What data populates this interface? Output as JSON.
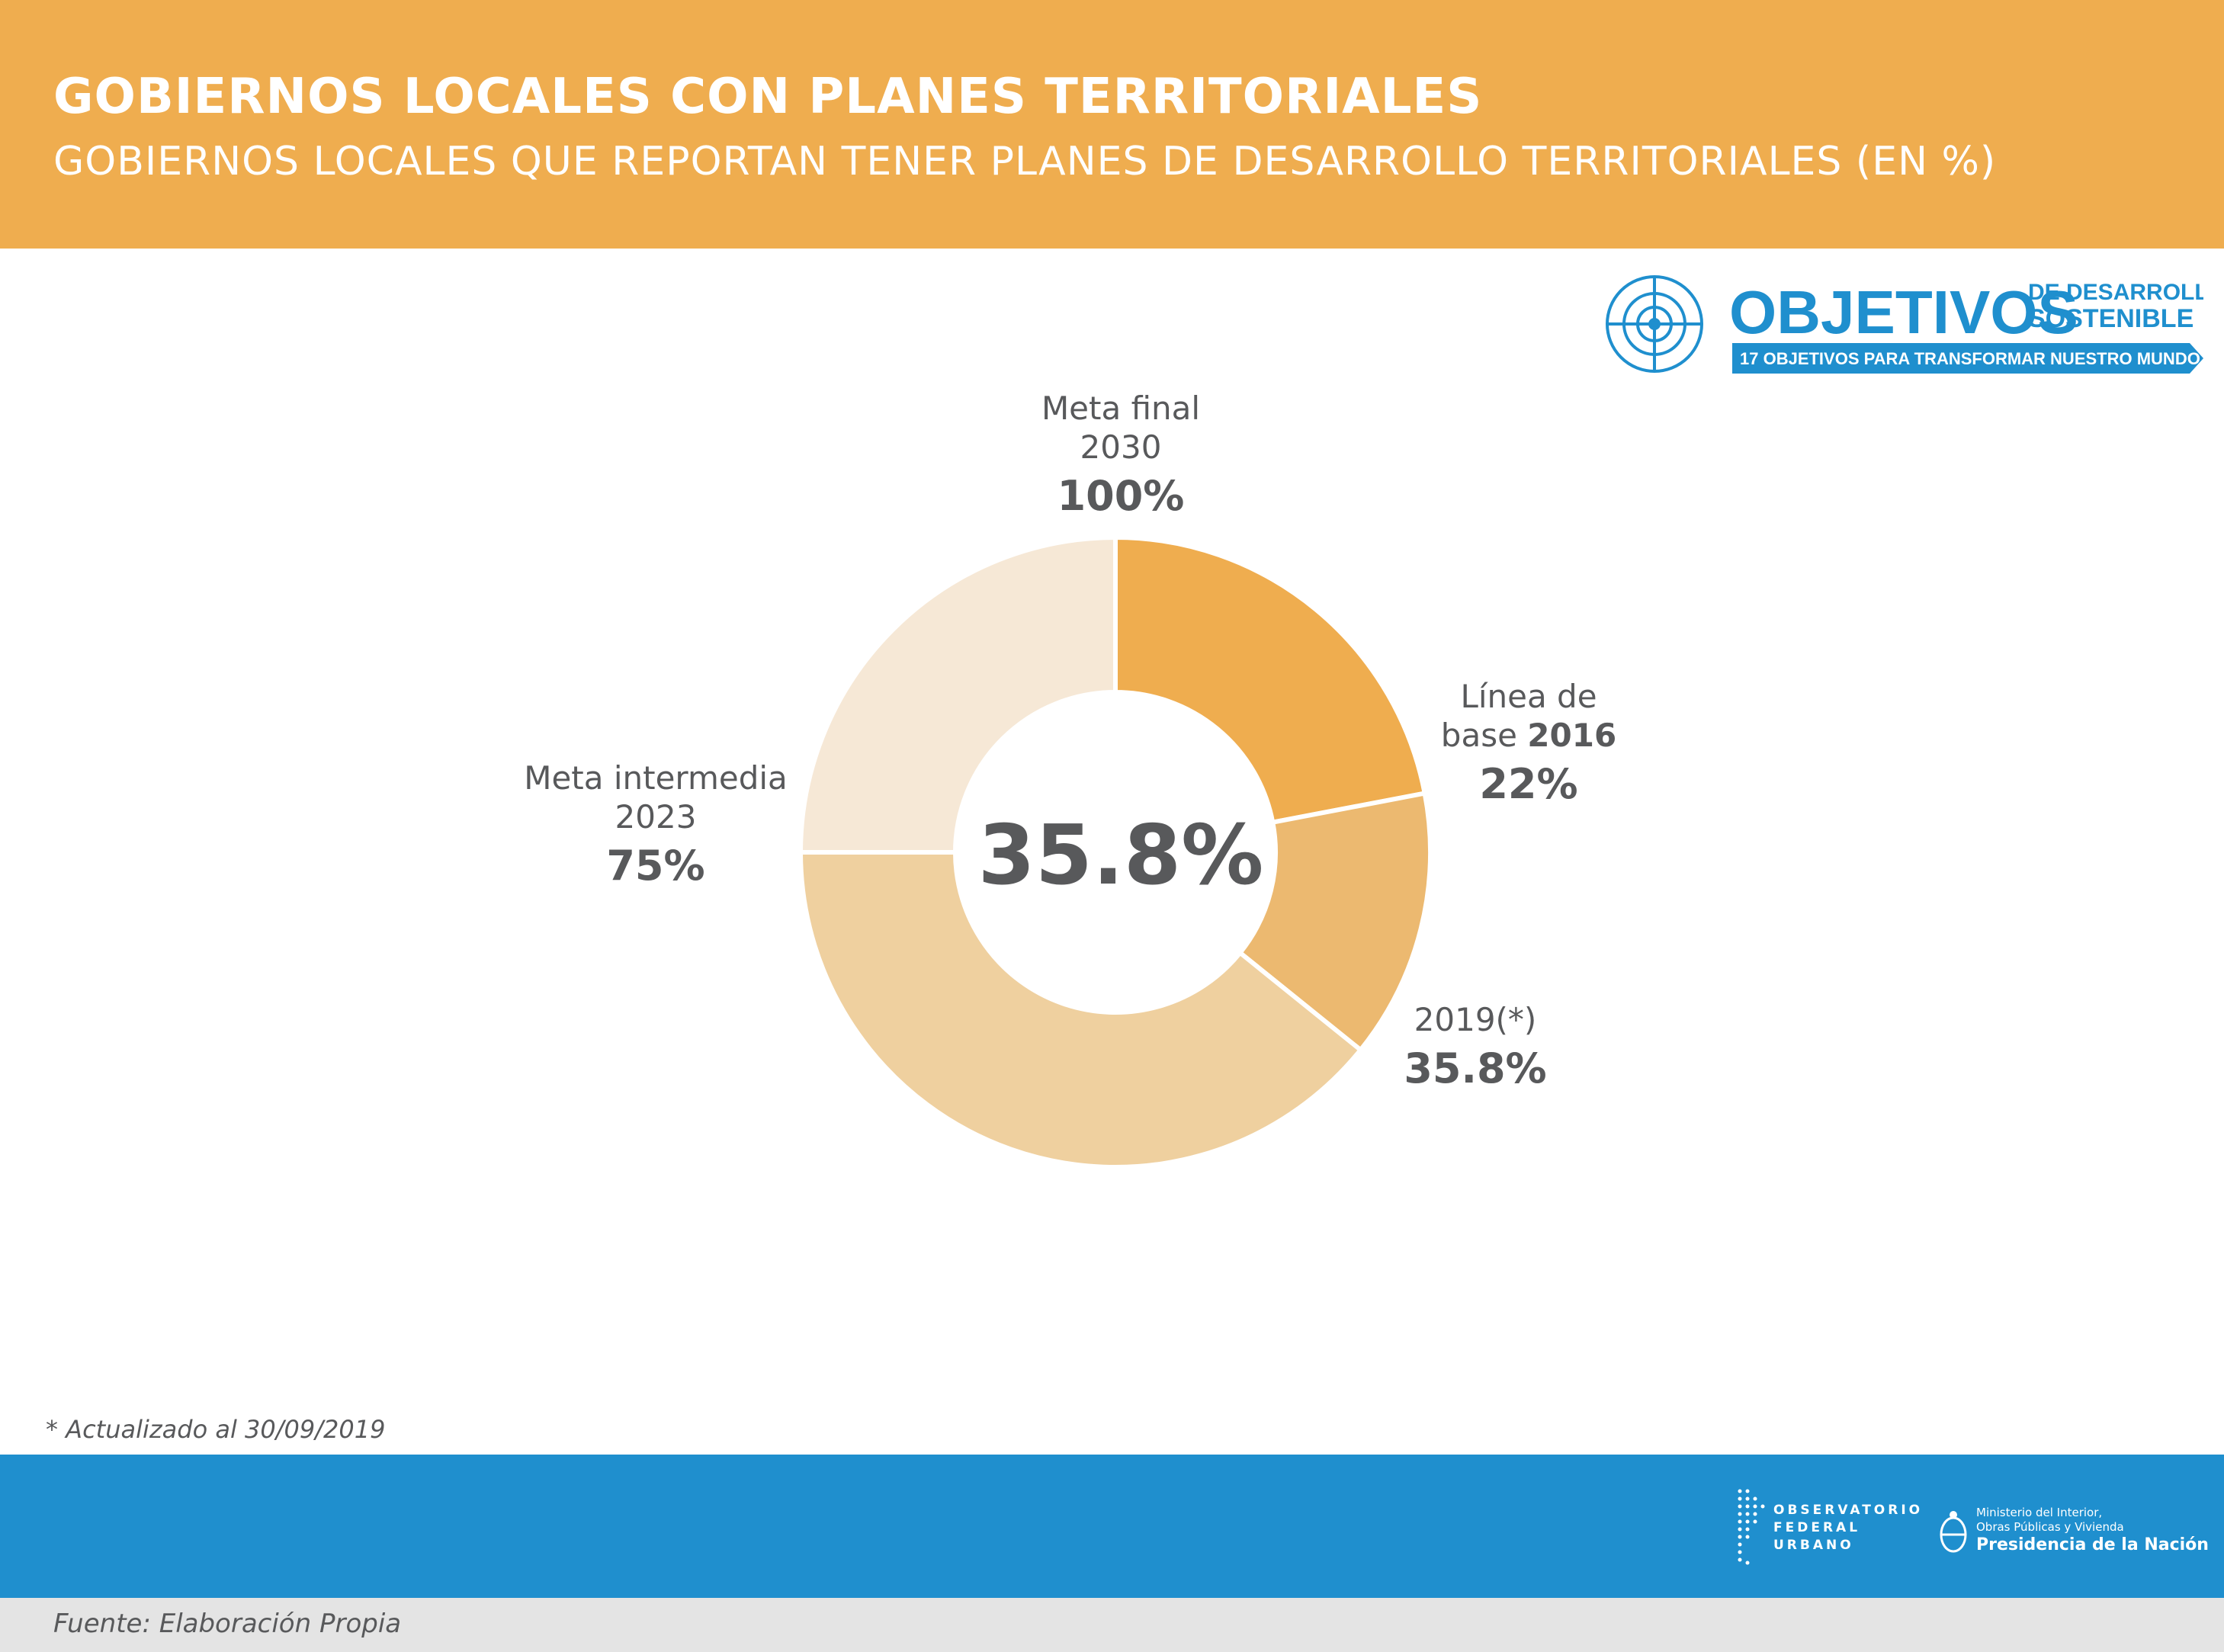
{
  "header": {
    "title": "GOBIERNOS LOCALES CON PLANES TERRITORIALES",
    "subtitle": "GOBIERNOS LOCALES QUE REPORTAN TENER PLANES DE DESARROLLO TERRITORIALES (EN %)"
  },
  "sdg_logo": {
    "word": "OBJETIVOS",
    "line1": "DE DESARROLLO",
    "line2": "SOSTENIBLE",
    "tagline": "17 OBJETIVOS PARA TRANSFORMAR NUESTRO MUNDO"
  },
  "chart_data": {
    "type": "pie",
    "center_label": "35.8%",
    "segments": [
      {
        "line1": "Línea de",
        "line2_prefix": "base ",
        "line2_bold": "2016",
        "value_label": "22%",
        "value": 22,
        "color": "#efad4f"
      },
      {
        "line1": "2019(*)",
        "value_label": "35.8%",
        "value": 35.8,
        "color": "#ecb970"
      },
      {
        "line1": "",
        "value_label": "",
        "value": 75,
        "color": "#efd09f"
      },
      {
        "line1": "Meta intermedia",
        "line2": "2023",
        "value_label": "75%",
        "value": 75,
        "color": "#f6e8d6"
      },
      {
        "line1": "Meta final",
        "line2": "2030",
        "value_label": "100%",
        "value": 100,
        "color": "#f6e8d6"
      }
    ]
  },
  "footnote": "* Actualizado al 30/09/2019",
  "footer": {
    "ofu_lines": [
      "OBSERVATORIO",
      "FEDERAL",
      "URBANO"
    ],
    "ministry_line1": "Ministerio del Interior,",
    "ministry_line2": "Obras Públicas y Vivienda",
    "presidency": "Presidencia de la Nación"
  },
  "source": "Fuente: Elaboración Propia"
}
